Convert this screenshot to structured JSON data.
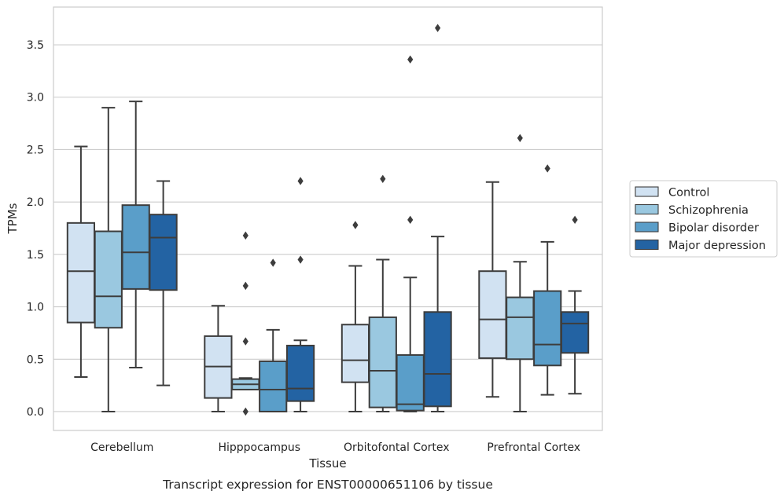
{
  "chart_data": {
    "type": "box",
    "xlabel": "Tissue",
    "ylabel": "TPMs",
    "caption": "Transcript expression for ENST00000651106 by tissue",
    "ylim": [
      -0.18,
      3.86
    ],
    "yticks": [
      "0.0",
      "0.5",
      "1.0",
      "1.5",
      "2.0",
      "2.5",
      "3.0",
      "3.5"
    ],
    "grid": true,
    "legend_position": "right",
    "categories": [
      "Cerebellum",
      "Hipppocampus",
      "Orbitofontal Cortex",
      "Prefrontal Cortex"
    ],
    "series": [
      {
        "name": "Control",
        "color": "#d1e2f2",
        "boxes": [
          {
            "whislo": 0.33,
            "q1": 0.85,
            "med": 1.34,
            "q3": 1.8,
            "whishi": 2.53,
            "fliers": []
          },
          {
            "whislo": 0.0,
            "q1": 0.13,
            "med": 0.43,
            "q3": 0.72,
            "whishi": 1.01,
            "fliers": []
          },
          {
            "whislo": 0.0,
            "q1": 0.28,
            "med": 0.49,
            "q3": 0.83,
            "whishi": 1.39,
            "fliers": [
              1.78
            ]
          },
          {
            "whislo": 0.14,
            "q1": 0.51,
            "med": 0.88,
            "q3": 1.34,
            "whishi": 2.19,
            "fliers": []
          }
        ]
      },
      {
        "name": "Schizophrenia",
        "color": "#9ac8e0",
        "boxes": [
          {
            "whislo": 0.0,
            "q1": 0.8,
            "med": 1.1,
            "q3": 1.72,
            "whishi": 2.9,
            "fliers": []
          },
          {
            "whislo": 0.21,
            "q1": 0.21,
            "med": 0.26,
            "q3": 0.31,
            "whishi": 0.32,
            "fliers": [
              0.0,
              0.67,
              1.2,
              1.68
            ]
          },
          {
            "whislo": 0.0,
            "q1": 0.04,
            "med": 0.39,
            "q3": 0.9,
            "whishi": 1.45,
            "fliers": [
              2.22
            ]
          },
          {
            "whislo": 0.0,
            "q1": 0.5,
            "med": 0.9,
            "q3": 1.09,
            "whishi": 1.43,
            "fliers": [
              2.61
            ]
          }
        ]
      },
      {
        "name": "Bipolar disorder",
        "color": "#5a9ec9",
        "boxes": [
          {
            "whislo": 0.42,
            "q1": 1.17,
            "med": 1.52,
            "q3": 1.97,
            "whishi": 2.96,
            "fliers": []
          },
          {
            "whislo": 0.0,
            "q1": 0.0,
            "med": 0.21,
            "q3": 0.48,
            "whishi": 0.78,
            "fliers": [
              1.42
            ]
          },
          {
            "whislo": 0.0,
            "q1": 0.01,
            "med": 0.07,
            "q3": 0.54,
            "whishi": 1.28,
            "fliers": [
              1.83,
              3.36
            ]
          },
          {
            "whislo": 0.16,
            "q1": 0.44,
            "med": 0.64,
            "q3": 1.15,
            "whishi": 1.62,
            "fliers": [
              2.32
            ]
          }
        ]
      },
      {
        "name": "Major depression",
        "color": "#2363a3",
        "boxes": [
          {
            "whislo": 0.25,
            "q1": 1.16,
            "med": 1.66,
            "q3": 1.88,
            "whishi": 2.2,
            "fliers": []
          },
          {
            "whislo": 0.0,
            "q1": 0.1,
            "med": 0.22,
            "q3": 0.63,
            "whishi": 0.68,
            "fliers": [
              1.45,
              2.2
            ]
          },
          {
            "whislo": 0.0,
            "q1": 0.05,
            "med": 0.36,
            "q3": 0.95,
            "whishi": 1.67,
            "fliers": [
              3.66
            ]
          },
          {
            "whislo": 0.17,
            "q1": 0.56,
            "med": 0.84,
            "q3": 0.95,
            "whishi": 1.15,
            "fliers": [
              1.83
            ]
          }
        ]
      }
    ]
  }
}
